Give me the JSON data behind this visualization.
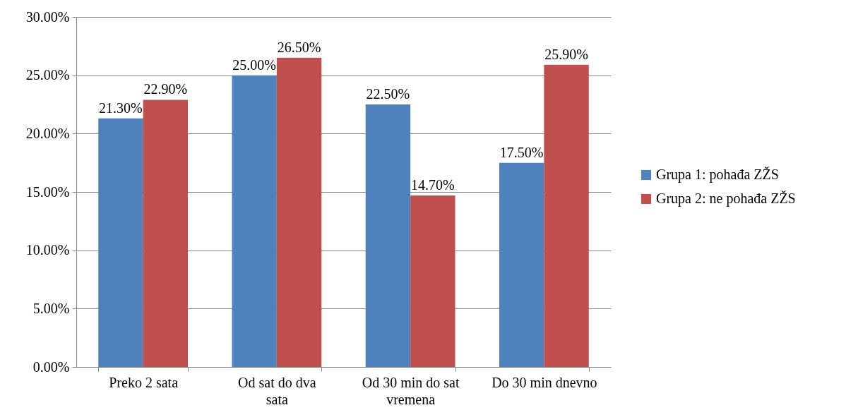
{
  "chart_data": {
    "type": "bar",
    "categories": [
      "Preko 2 sata",
      "Od sat do dva sata",
      "Od 30 min do sat vremena",
      "Do 30 min dnevno"
    ],
    "series": [
      {
        "name": "Grupa 1: pohađa ZŽS",
        "color": "#4f81bd",
        "values": [
          21.3,
          25.0,
          22.5,
          17.5
        ],
        "value_labels": [
          "21.30%",
          "25.00%",
          "22.50%",
          "17.50%"
        ]
      },
      {
        "name": "Grupa 2: ne pohađa ZŽS",
        "color": "#c0504d",
        "values": [
          22.9,
          26.5,
          14.7,
          25.9
        ],
        "value_labels": [
          "22.90%",
          "26.50%",
          "14.70%",
          "25.90%"
        ]
      }
    ],
    "ylim": [
      0,
      30
    ],
    "yticks": [
      {
        "value": 0,
        "label": "0.00%"
      },
      {
        "value": 5,
        "label": "5.00%"
      },
      {
        "value": 10,
        "label": "10.00%"
      },
      {
        "value": 15,
        "label": "15.00%"
      },
      {
        "value": 20,
        "label": "20.00%"
      },
      {
        "value": 25,
        "label": "25.00%"
      },
      {
        "value": 30,
        "label": "30.00%"
      }
    ],
    "grid": "y",
    "legend": "right"
  }
}
